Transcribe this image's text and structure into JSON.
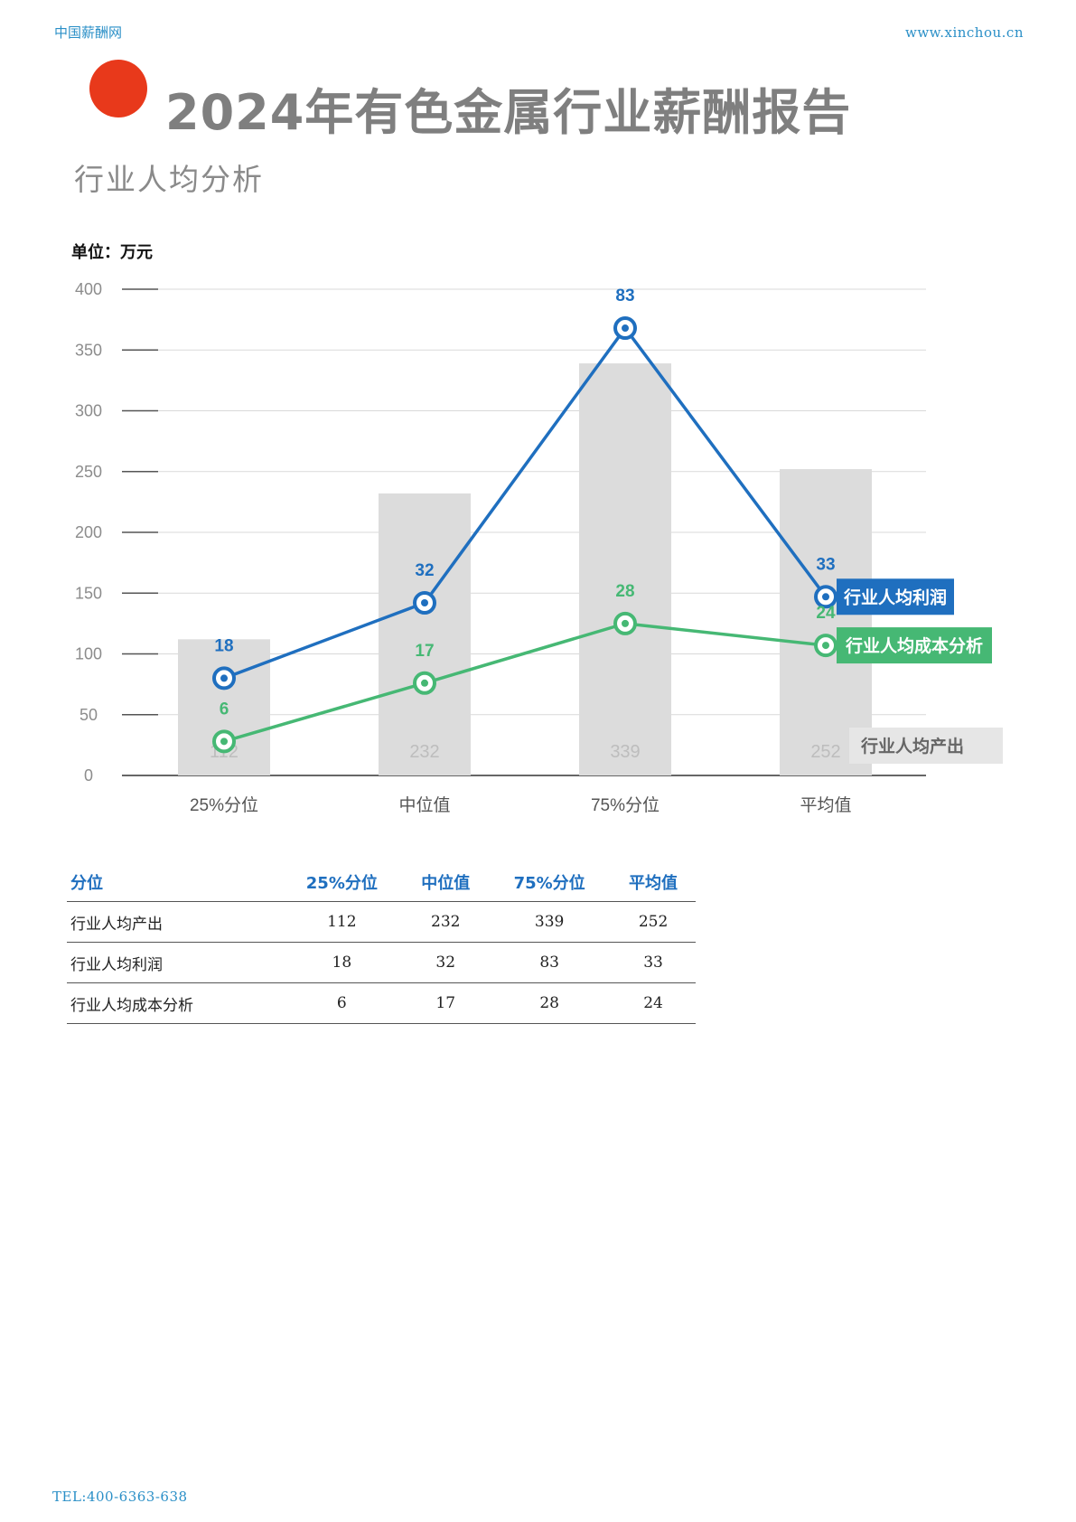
{
  "header": {
    "left_text": "中国薪酬网",
    "right_text": "www.xinchou.cn"
  },
  "title": "2024年有色金属行业薪酬报告",
  "subtitle": "行业人均分析",
  "unit_label": "单位：万元",
  "colors": {
    "accent_dot": "#e8391b",
    "profit": "#1f6fbf",
    "cost": "#46b874",
    "output_bar": "#dcdcdc"
  },
  "chart_data": {
    "type": "bar+line",
    "categories": [
      "25%分位",
      "中位值",
      "75%分位",
      "平均值"
    ],
    "ylim": [
      0,
      400
    ],
    "yticks": [
      0,
      50,
      100,
      150,
      200,
      250,
      300,
      350,
      400
    ],
    "grid": true,
    "series": [
      {
        "name": "行业人均产出",
        "kind": "bar",
        "values": [
          112,
          232,
          339,
          252
        ],
        "labels": [
          "112",
          "232",
          "339",
          "252"
        ]
      },
      {
        "name": "行业人均利润",
        "kind": "line",
        "plot_values": [
          80,
          142,
          368,
          147
        ],
        "labels": [
          "18",
          "32",
          "83",
          "33"
        ]
      },
      {
        "name": "行业人均成本分析",
        "kind": "line",
        "plot_values": [
          28,
          76,
          125,
          107
        ],
        "labels": [
          "6",
          "17",
          "28",
          "24"
        ]
      }
    ]
  },
  "table": {
    "headers": [
      "分位",
      "25%分位",
      "中位值",
      "75%分位",
      "平均值"
    ],
    "rows": [
      [
        "行业人均产出",
        "112",
        "232",
        "339",
        "252"
      ],
      [
        "行业人均利润",
        "18",
        "32",
        "83",
        "33"
      ],
      [
        "行业人均成本分析",
        "6",
        "17",
        "28",
        "24"
      ]
    ]
  },
  "footer": "TEL:400-6363-638"
}
